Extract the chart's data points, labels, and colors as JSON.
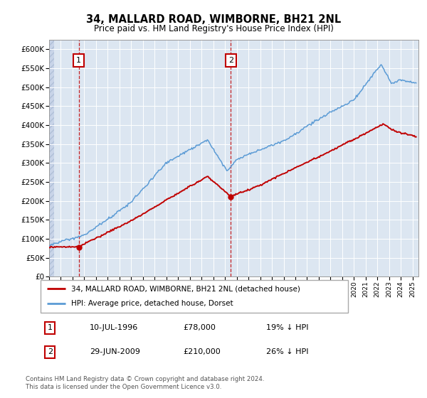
{
  "title": "34, MALLARD ROAD, WIMBORNE, BH21 2NL",
  "subtitle": "Price paid vs. HM Land Registry's House Price Index (HPI)",
  "vline1_x": 1996.53,
  "vline2_x": 2009.49,
  "hpi_color": "#5b9bd5",
  "price_color": "#c00000",
  "vline_color": "#c00000",
  "plot_bg": "#dce6f1",
  "ylim": [
    0,
    625000
  ],
  "xlim": [
    1994.0,
    2025.5
  ],
  "ylabel_ticks": [
    0,
    50000,
    100000,
    150000,
    200000,
    250000,
    300000,
    350000,
    400000,
    450000,
    500000,
    550000,
    600000
  ],
  "legend_label1": "34, MALLARD ROAD, WIMBORNE, BH21 2NL (detached house)",
  "legend_label2": "HPI: Average price, detached house, Dorset",
  "table_row1": [
    "1",
    "10-JUL-1996",
    "£78,000",
    "19% ↓ HPI"
  ],
  "table_row2": [
    "2",
    "29-JUN-2009",
    "£210,000",
    "26% ↓ HPI"
  ],
  "footer": "Contains HM Land Registry data © Crown copyright and database right 2024.\nThis data is licensed under the Open Government Licence v3.0.",
  "grid_color": "#ffffff",
  "ann1_y": 570000,
  "ann2_y": 570000
}
